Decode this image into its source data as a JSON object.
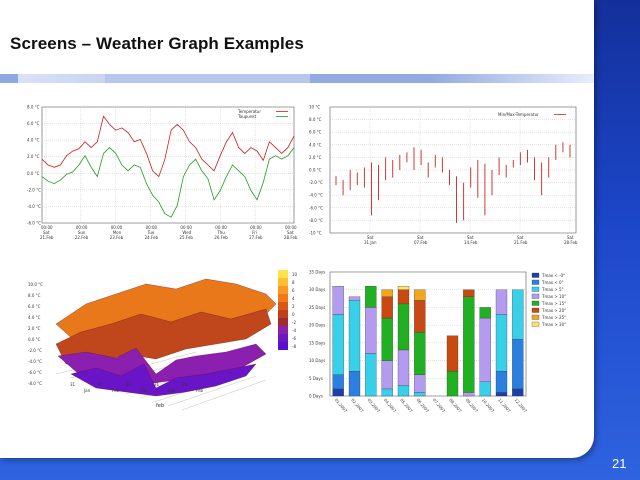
{
  "slide": {
    "title": "Screens – Weather Graph Examples",
    "page_number": "21"
  },
  "panel1": {
    "legend": [
      "Temperatur",
      "Taupunkt"
    ],
    "y_ticks": [
      "8.0 °C",
      "6.0 °C",
      "4.0 °C",
      "2.0 °C",
      "0.0 °C",
      "-2.0 °C",
      "-4.0 °C",
      "-6.0 °C"
    ],
    "x_days": [
      "Sat",
      "Sun",
      "Mon",
      "Tue",
      "Wed",
      "Thu",
      "Fri",
      "Sat"
    ],
    "x_time": "00:00",
    "x_dates": [
      "21.Feb",
      "22.Feb",
      "23.Feb",
      "24.Feb",
      "25.Feb",
      "26.Feb",
      "27.Feb",
      "28.Feb"
    ],
    "colors": {
      "temperature": "#d11a1a",
      "dewpoint": "#1f9d1f"
    }
  },
  "panel2": {
    "legend": "Min/Max-Temperatur",
    "y_ticks": [
      "10 °C",
      "8.0 °C",
      "6.0 °C",
      "4.0 °C",
      "2.0 °C",
      "0.0 °C",
      "-2.0 °C",
      "-4.0 °C",
      "-6.0 °C",
      "-8.0 °C",
      "-10 °C"
    ],
    "x_days": [
      "Sat",
      "Sat",
      "Sat",
      "Sat",
      "Sat"
    ],
    "x_dates": [
      "31.Jan",
      "07.Feb",
      "14.Feb",
      "21.Feb",
      "28.Feb"
    ],
    "colors": {
      "range": "#cc2222"
    }
  },
  "panel3": {
    "z_ticks": [
      "10.0 °C",
      "8.0 °C",
      "6.0 °C",
      "4.0 °C",
      "2.0 °C",
      "0.0 °C",
      "-2.0 °C",
      "-4.0 °C",
      "-6.0 °C",
      "-8.0 °C"
    ],
    "x_ticks": [
      "31",
      "Jan",
      "07",
      "Feb",
      "14",
      "Feb",
      "21",
      "Feb",
      "28",
      "Feb"
    ],
    "axis_label": "feb",
    "scale": [
      "10",
      "8",
      "6",
      "4",
      "2",
      "0",
      "-2",
      "-4",
      "-6",
      "-8"
    ]
  },
  "panel4": {
    "y_ticks": [
      "35 Days",
      "30 Days",
      "25 Days",
      "20 Days",
      "15 Days",
      "10 Days",
      "5 Days",
      "0 Days"
    ],
    "x_labels": [
      "01.2007",
      "02.2007",
      "03.2007",
      "04.2007",
      "05.2007",
      "06.2007",
      "07.2007",
      "08.2007",
      "09.2007",
      "10.2007",
      "11.2007",
      "12.2007"
    ],
    "legend": [
      {
        "label": "Tmax < -0°",
        "color": "#1f3fa8"
      },
      {
        "label": "Tmax < 0°",
        "color": "#2a7fe0"
      },
      {
        "label": "Tmax > 5°",
        "color": "#38d0e8"
      },
      {
        "label": "Tmax > 10°",
        "color": "#b39bf0"
      },
      {
        "label": "Tmax > 15°",
        "color": "#21b021"
      },
      {
        "label": "Tmax > 20°",
        "color": "#c84a12"
      },
      {
        "label": "Tmax > 25°",
        "color": "#f0a818"
      },
      {
        "label": "Tmax > 30°",
        "color": "#ffe070"
      }
    ]
  }
}
